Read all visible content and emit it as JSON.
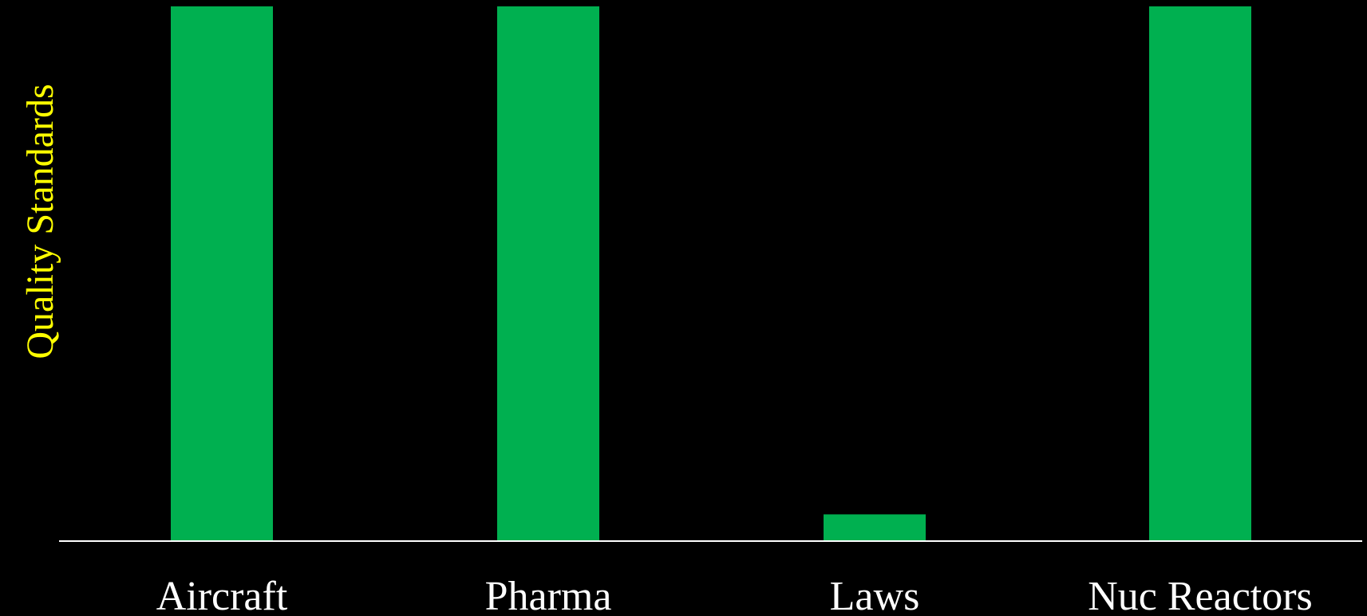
{
  "chart_data": {
    "type": "bar",
    "categories": [
      "Aircraft",
      "Pharma",
      "Laws",
      "Nuc Reactors"
    ],
    "values": [
      100,
      100,
      5,
      100
    ],
    "title": "",
    "xlabel": "",
    "ylabel": "Quality Standards",
    "ylim": [
      0,
      100
    ],
    "grid": false,
    "legend": "none"
  },
  "colors": {
    "background": "#000000",
    "bar": "#00b050",
    "axis": "#ffffff",
    "category_text": "#ffffff",
    "ylabel_text": "#ffff00"
  }
}
